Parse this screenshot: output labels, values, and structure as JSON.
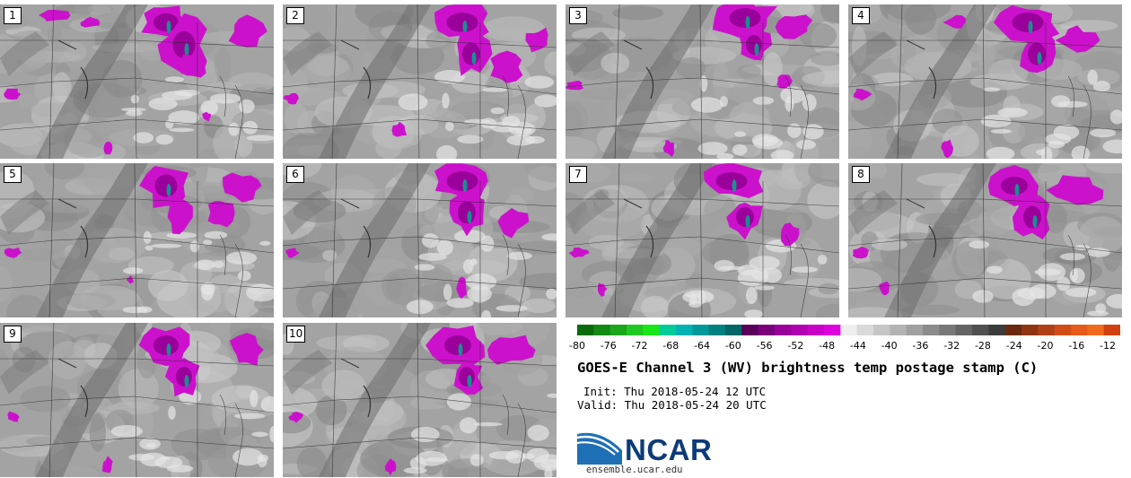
{
  "panels": [
    {
      "label": "1"
    },
    {
      "label": "2"
    },
    {
      "label": "3"
    },
    {
      "label": "4"
    },
    {
      "label": "5"
    },
    {
      "label": "6"
    },
    {
      "label": "7"
    },
    {
      "label": "8"
    },
    {
      "label": "9"
    },
    {
      "label": "10"
    }
  ],
  "colorbar": {
    "ticks": [
      "-80",
      "-76",
      "-72",
      "-68",
      "-64",
      "-60",
      "-56",
      "-52",
      "-48",
      "-44",
      "-40",
      "-36",
      "-32",
      "-28",
      "-24",
      "-20",
      "-16",
      "-12"
    ],
    "colors": [
      "#0a6b0a",
      "#138a13",
      "#1aa81a",
      "#20c820",
      "#19e619",
      "#00cc99",
      "#00b3b3",
      "#009999",
      "#008080",
      "#006666",
      "#5a005a",
      "#7a007a",
      "#990099",
      "#b000b0",
      "#c800c8",
      "#dd00dd",
      "#eeeeee",
      "#d9d9d9",
      "#c6c6c6",
      "#b3b3b3",
      "#a0a0a0",
      "#8c8c8c",
      "#787878",
      "#646464",
      "#505050",
      "#3c3c3c",
      "#6b2a10",
      "#8e3512",
      "#b04015",
      "#d04d18",
      "#e85a18",
      "#f06a1e",
      "#d04010"
    ]
  },
  "title": "GOES-E Channel 3 (WV) brightness temp postage stamp (C)",
  "init": "Init: Thu 2018-05-24 12 UTC",
  "valid": "Valid: Thu 2018-05-24 20 UTC",
  "logo": {
    "name": "NCAR",
    "url": "ensemble.ucar.edu"
  }
}
